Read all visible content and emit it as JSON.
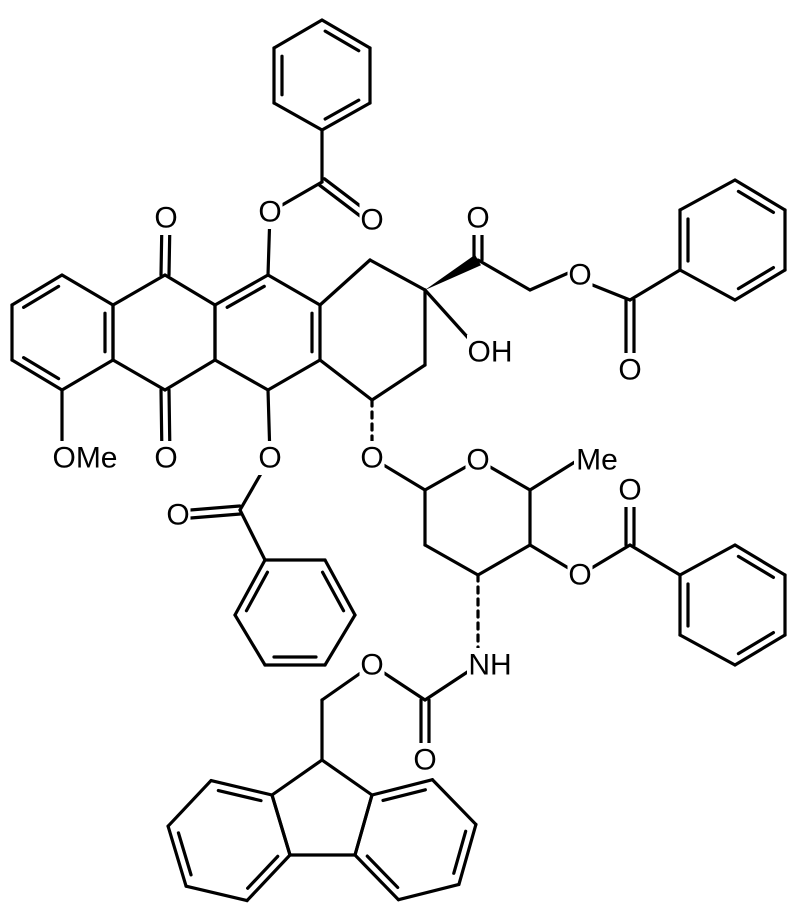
{
  "atom_labels": [
    "O",
    "O",
    "O",
    "O",
    "OH",
    "O",
    "O",
    "OMe",
    "O",
    "O",
    "O",
    "O",
    "O",
    "Me",
    "O",
    "O",
    "NH",
    "O",
    "O"
  ]
}
